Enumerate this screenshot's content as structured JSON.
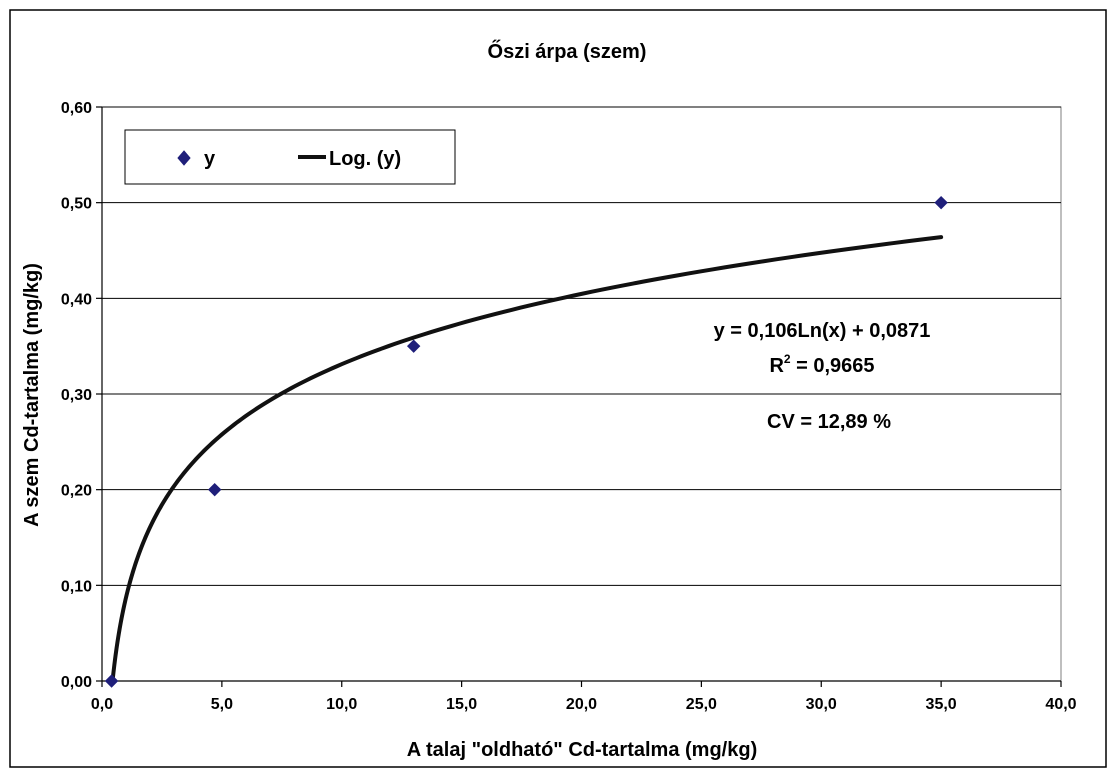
{
  "chart_data": {
    "type": "scatter",
    "title": "Őszi árpa (szem)",
    "xlabel": "A talaj \"oldható\" Cd-tartalma (mg/kg)",
    "ylabel": "A szem Cd-tartalma (mg/kg)",
    "xlim": [
      0,
      40
    ],
    "ylim": [
      0,
      0.6
    ],
    "x_ticks": [
      0,
      5,
      10,
      15,
      20,
      25,
      30,
      35,
      40
    ],
    "y_ticks": [
      0,
      0.1,
      0.2,
      0.3,
      0.4,
      0.5,
      0.6
    ],
    "x_tick_labels": [
      "0,0",
      "5,0",
      "10,0",
      "15,0",
      "20,0",
      "25,0",
      "30,0",
      "35,0",
      "40,0"
    ],
    "y_tick_labels": [
      "0,00",
      "0,10",
      "0,20",
      "0,30",
      "0,40",
      "0,50",
      "0,60"
    ],
    "grid": "horizontal",
    "legend_position": "top-left",
    "series": [
      {
        "name": "y",
        "marker": "diamond",
        "color": "#1f1f7a",
        "points": [
          {
            "x": 0.4,
            "y": 0.0
          },
          {
            "x": 4.7,
            "y": 0.2
          },
          {
            "x": 13.0,
            "y": 0.35
          },
          {
            "x": 35.0,
            "y": 0.5
          }
        ]
      }
    ],
    "trendline": {
      "name": "Log. (y)",
      "type": "logarithmic",
      "a": 0.106,
      "b": 0.0871,
      "x_range": [
        0.44,
        35.0
      ],
      "color": "#111111"
    },
    "annotations": {
      "equation": "y = 0,106Ln(x) + 0,0871",
      "r2_prefix": "R",
      "r2_sup": "2",
      "r2_value": " = 0,9665",
      "cv": "CV = 12,89 %"
    }
  }
}
